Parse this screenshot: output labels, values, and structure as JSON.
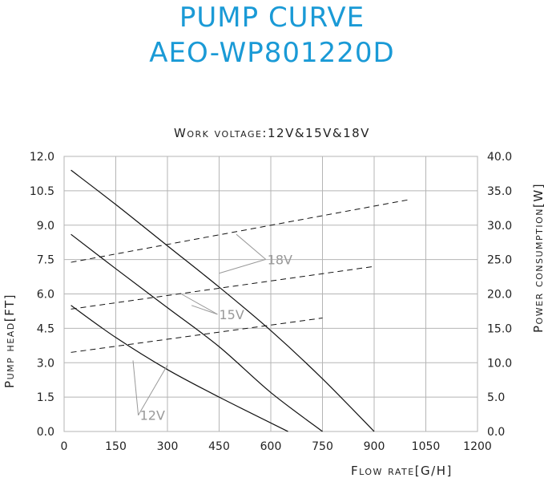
{
  "header": {
    "title_line1": "PUMP CURVE",
    "title_line2": "AEO-WP801220D"
  },
  "colors": {
    "title": "#1a9ad6",
    "grid": "#b5b5b5",
    "curve": "#111111",
    "annotation": "#999999"
  },
  "chart_data": {
    "type": "line",
    "subtitle": "Work voltage:12V&15V&18V",
    "xlabel": "Flow rate[G/H]",
    "ylabel": "Pump head[FT]",
    "y2label": "Power consumption[W]",
    "xlim": [
      0,
      1200
    ],
    "ylim": [
      0,
      12
    ],
    "y2lim": [
      0,
      40
    ],
    "xticks": [
      "0",
      "150",
      "300",
      "450",
      "600",
      "750",
      "900",
      "1050",
      "1200"
    ],
    "yticks": [
      "0.0",
      "1.5",
      "3.0",
      "4.5",
      "6.0",
      "7.5",
      "9.0",
      "10.5",
      "12.0"
    ],
    "y2ticks": [
      "0.0",
      "5.0",
      "10.0",
      "15.0",
      "20.0",
      "25.0",
      "30.0",
      "35.0",
      "40.0"
    ],
    "grid": true,
    "head_curves": [
      {
        "name": "12V",
        "x": [
          20,
          150,
          300,
          450,
          650
        ],
        "y": [
          5.5,
          4.1,
          2.7,
          1.5,
          0
        ]
      },
      {
        "name": "15V",
        "x": [
          20,
          150,
          300,
          450,
          600,
          750
        ],
        "y": [
          8.6,
          7.1,
          5.4,
          3.7,
          1.7,
          0
        ]
      },
      {
        "name": "18V",
        "x": [
          20,
          150,
          300,
          450,
          600,
          750,
          900
        ],
        "y": [
          11.4,
          9.9,
          8.1,
          6.3,
          4.4,
          2.3,
          0
        ]
      }
    ],
    "power_curves": [
      {
        "name": "12V",
        "axis": "right",
        "x": [
          20,
          750
        ],
        "y": [
          11.5,
          16.5
        ]
      },
      {
        "name": "15V",
        "axis": "right",
        "x": [
          20,
          900
        ],
        "y": [
          17.8,
          24.0
        ]
      },
      {
        "name": "18V",
        "axis": "right",
        "x": [
          20,
          1000
        ],
        "y": [
          24.6,
          33.7
        ]
      }
    ],
    "annotations": [
      {
        "text": "12V",
        "label_at": [
          220,
          0.5
        ],
        "leaders": [
          [
            200,
            3.1
          ],
          [
            300,
            2.9
          ]
        ]
      },
      {
        "text": "15V",
        "label_at": [
          450,
          4.9
        ],
        "leaders": [
          [
            370,
            5.5
          ],
          [
            340,
            6.0
          ]
        ]
      },
      {
        "text": "18V",
        "label_at": [
          590,
          7.3
        ],
        "leaders": [
          [
            450,
            6.9
          ],
          [
            500,
            8.6
          ]
        ]
      }
    ]
  }
}
